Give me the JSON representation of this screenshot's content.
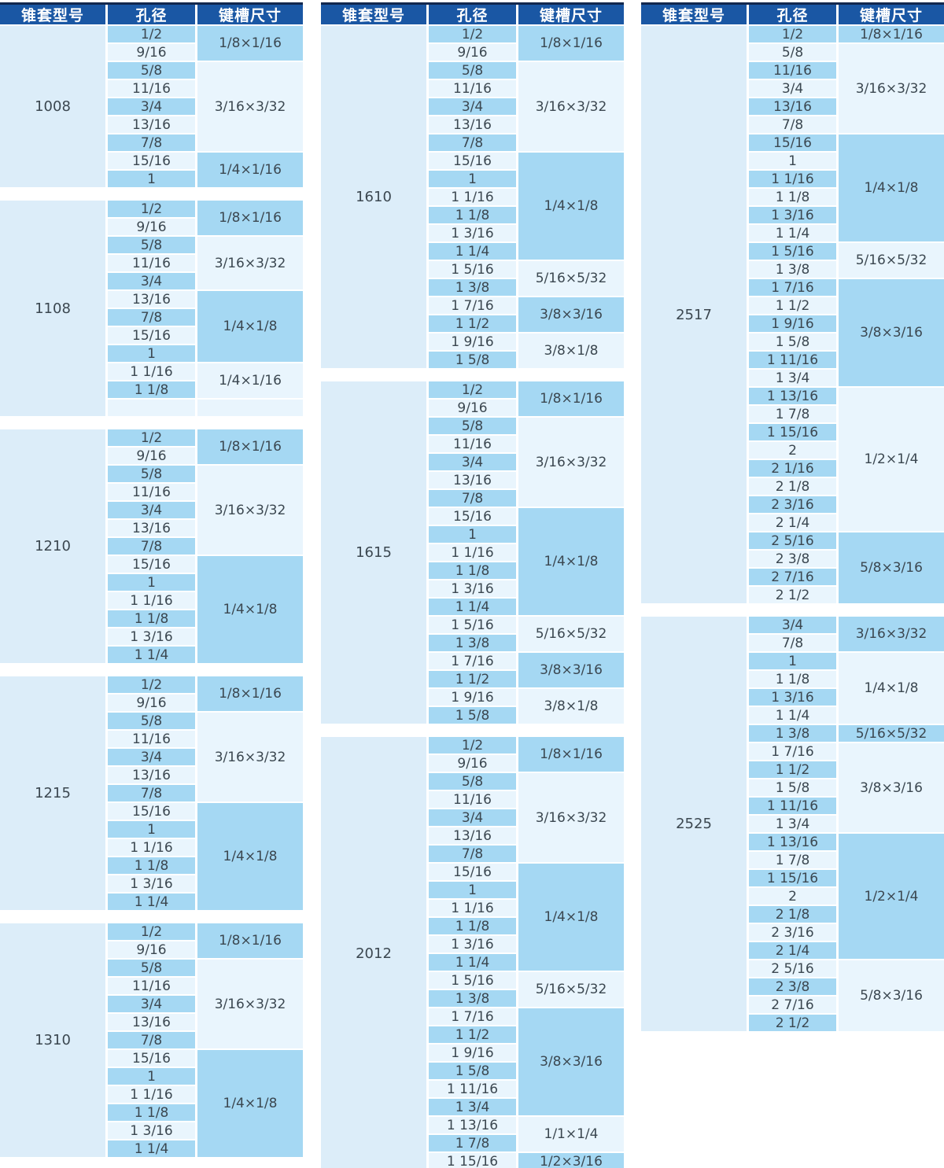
{
  "header": {
    "model": "锥套型号",
    "bore": "孔径",
    "keyway": "键槽尺寸"
  },
  "colors": {
    "header_bg": "#1a57a4",
    "header_border": "#12284e",
    "stripe_mid": "#a5d8f3",
    "stripe_light": "#e9f5fd",
    "model_bg": "#dcedf9",
    "text": "#3b4750",
    "header_text": "#ffffff",
    "page_bg": "#ffffff"
  },
  "columns": [
    {
      "groups": [
        {
          "model": "1008",
          "segments": [
            {
              "keyway": "1/8×1/16",
              "bores": [
                "1/2",
                "9/16"
              ]
            },
            {
              "keyway": "3/16×3/32",
              "bores": [
                "5/8",
                "11/16",
                "3/4",
                "13/16",
                "7/8"
              ]
            },
            {
              "keyway": "1/4×1/16",
              "bores": [
                "15/16",
                "1"
              ]
            }
          ]
        },
        {
          "model": "1108",
          "segments": [
            {
              "keyway": "1/8×1/16",
              "bores": [
                "1/2",
                "9/16"
              ]
            },
            {
              "keyway": "3/16×3/32",
              "bores": [
                "5/8",
                "11/16",
                "3/4"
              ]
            },
            {
              "keyway": "1/4×1/8",
              "bores": [
                "13/16",
                "7/8",
                "15/16",
                "1"
              ]
            },
            {
              "keyway": "1/4×1/16",
              "bores": [
                "1 1/16",
                "1 1/8"
              ]
            },
            {
              "keyway": "",
              "bores": [
                ""
              ],
              "empty": true
            }
          ]
        },
        {
          "model": "1210",
          "segments": [
            {
              "keyway": "1/8×1/16",
              "bores": [
                "1/2",
                "9/16"
              ]
            },
            {
              "keyway": "3/16×3/32",
              "bores": [
                "5/8",
                "11/16",
                "3/4",
                "13/16",
                "7/8"
              ]
            },
            {
              "keyway": "1/4×1/8",
              "bores": [
                "15/16",
                "1",
                "1 1/16",
                "1 1/8",
                "1 3/16",
                "1 1/4"
              ]
            }
          ]
        },
        {
          "model": "1215",
          "segments": [
            {
              "keyway": "1/8×1/16",
              "bores": [
                "1/2",
                "9/16"
              ]
            },
            {
              "keyway": "3/16×3/32",
              "bores": [
                "5/8",
                "11/16",
                "3/4",
                "13/16",
                "7/8"
              ]
            },
            {
              "keyway": "1/4×1/8",
              "bores": [
                "15/16",
                "1",
                "1 1/16",
                "1 1/8",
                "1 3/16",
                "1 1/4"
              ]
            }
          ]
        },
        {
          "model": "1310",
          "segments": [
            {
              "keyway": "1/8×1/16",
              "bores": [
                "1/2",
                "9/16"
              ]
            },
            {
              "keyway": "3/16×3/32",
              "bores": [
                "5/8",
                "11/16",
                "3/4",
                "13/16",
                "7/8"
              ]
            },
            {
              "keyway": "1/4×1/8",
              "bores": [
                "15/16",
                "1",
                "1 1/16",
                "1 1/8",
                "1 3/16",
                "1 1/4"
              ]
            }
          ]
        }
      ]
    },
    {
      "groups": [
        {
          "model": "1610",
          "segments": [
            {
              "keyway": "1/8×1/16",
              "bores": [
                "1/2",
                "9/16"
              ]
            },
            {
              "keyway": "3/16×3/32",
              "bores": [
                "5/8",
                "11/16",
                "3/4",
                "13/16",
                "7/8"
              ]
            },
            {
              "keyway": "1/4×1/8",
              "bores": [
                "15/16",
                "1",
                "1 1/16",
                "1 1/8",
                "1 3/16",
                "1 1/4"
              ]
            },
            {
              "keyway": "5/16×5/32",
              "bores": [
                "1 5/16",
                "1 3/8"
              ]
            },
            {
              "keyway": "3/8×3/16",
              "bores": [
                "1 7/16",
                "1 1/2"
              ]
            },
            {
              "keyway": "3/8×1/8",
              "bores": [
                "1 9/16",
                "1 5/8"
              ]
            }
          ]
        },
        {
          "model": "1615",
          "segments": [
            {
              "keyway": "1/8×1/16",
              "bores": [
                "1/2",
                "9/16"
              ]
            },
            {
              "keyway": "3/16×3/32",
              "bores": [
                "5/8",
                "11/16",
                "3/4",
                "13/16",
                "7/8"
              ]
            },
            {
              "keyway": "1/4×1/8",
              "bores": [
                "15/16",
                "1",
                "1 1/16",
                "1 1/8",
                "1 3/16",
                "1 1/4"
              ]
            },
            {
              "keyway": "5/16×5/32",
              "bores": [
                "1 5/16",
                "1 3/8"
              ]
            },
            {
              "keyway": "3/8×3/16",
              "bores": [
                "1 7/16",
                "1 1/2"
              ]
            },
            {
              "keyway": "3/8×1/8",
              "bores": [
                "1 9/16",
                "1 5/8"
              ]
            }
          ]
        },
        {
          "model": "2012",
          "segments": [
            {
              "keyway": "1/8×1/16",
              "bores": [
                "1/2",
                "9/16"
              ]
            },
            {
              "keyway": "3/16×3/32",
              "bores": [
                "5/8",
                "11/16",
                "3/4",
                "13/16",
                "7/8"
              ]
            },
            {
              "keyway": "1/4×1/8",
              "bores": [
                "15/16",
                "1",
                "1 1/16",
                "1 1/8",
                "1 3/16",
                "1 1/4"
              ]
            },
            {
              "keyway": "5/16×5/32",
              "bores": [
                "1 5/16",
                "1 3/8"
              ]
            },
            {
              "keyway": "3/8×3/16",
              "bores": [
                "1 7/16",
                "1 1/2",
                "1 9/16",
                "1 5/8",
                "1 11/16",
                "1 3/4"
              ]
            },
            {
              "keyway": "1/1×1/4",
              "bores": [
                "1 13/16",
                "1 7/8"
              ]
            },
            {
              "keyway": "1/2×3/16",
              "bores": [
                "1 15/16"
              ]
            }
          ]
        }
      ]
    },
    {
      "groups": [
        {
          "model": "2517",
          "segments": [
            {
              "keyway": "1/8×1/16",
              "bores": [
                "1/2"
              ]
            },
            {
              "keyway": "3/16×3/32",
              "bores": [
                "5/8",
                "11/16",
                "3/4",
                "13/16",
                "7/8"
              ]
            },
            {
              "keyway": "1/4×1/8",
              "bores": [
                "15/16",
                "1",
                "1 1/16",
                "1 1/8",
                "1 3/16",
                "1 1/4"
              ]
            },
            {
              "keyway": "5/16×5/32",
              "bores": [
                "1 5/16",
                "1 3/8"
              ]
            },
            {
              "keyway": "3/8×3/16",
              "bores": [
                "1 7/16",
                "1 1/2",
                "1 9/16",
                "1 5/8",
                "1 11/16",
                "1 3/4"
              ]
            },
            {
              "keyway": "1/2×1/4",
              "bores": [
                "1 13/16",
                "1 7/8",
                "1 15/16",
                "2",
                "2 1/16",
                "2 1/8",
                "2 3/16",
                "2 1/4"
              ]
            },
            {
              "keyway": "5/8×3/16",
              "bores": [
                "2 5/16",
                "2 3/8",
                "2 7/16",
                "2 1/2"
              ]
            }
          ]
        },
        {
          "model": "2525",
          "segments": [
            {
              "keyway": "3/16×3/32",
              "bores": [
                "3/4",
                "7/8"
              ]
            },
            {
              "keyway": "1/4×1/8",
              "bores": [
                "1",
                "1 1/8",
                "1 3/16",
                "1 1/4"
              ]
            },
            {
              "keyway": "5/16×5/32",
              "bores": [
                "1 3/8"
              ]
            },
            {
              "keyway": "3/8×3/16",
              "bores": [
                "1 7/16",
                "1 1/2",
                "1 5/8",
                "1 11/16",
                "1 3/4"
              ]
            },
            {
              "keyway": "1/2×1/4",
              "bores": [
                "1 13/16",
                "1 7/8",
                "1 15/16",
                "2",
                "2 1/8",
                "2 3/16",
                "2 1/4"
              ]
            },
            {
              "keyway": "5/8×3/16",
              "bores": [
                "2 5/16",
                "2 3/8",
                "2 7/16",
                "2 1/2"
              ]
            }
          ]
        }
      ]
    }
  ]
}
